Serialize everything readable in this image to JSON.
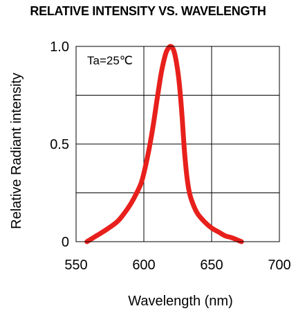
{
  "chart_data": {
    "type": "line",
    "title": "RELATIVE INTENSITY VS. WAVELENGTH",
    "xlabel": "Wavelength (nm)",
    "ylabel": "Relative Radiant intensity",
    "annotation": "Ta=25℃",
    "xlim": [
      550,
      700
    ],
    "ylim": [
      0,
      1.0
    ],
    "x_ticks": [
      550,
      600,
      650,
      700
    ],
    "x_tick_labels": [
      "550",
      "600",
      "650",
      "700"
    ],
    "y_ticks": [
      0,
      0.5,
      1.0
    ],
    "y_tick_labels": [
      "0",
      "0.5",
      "1.0"
    ],
    "grid": true,
    "series": [
      {
        "color": "#e8201c",
        "x": [
          558,
          565,
          572,
          580,
          585,
          590,
          594,
          598,
          601,
          604,
          607,
          610,
          613,
          616,
          618,
          620,
          622,
          624,
          626,
          628,
          630,
          632,
          634,
          637,
          640,
          645,
          650,
          655,
          660,
          665,
          672
        ],
        "y": [
          0.0,
          0.03,
          0.06,
          0.1,
          0.14,
          0.19,
          0.24,
          0.3,
          0.38,
          0.48,
          0.6,
          0.74,
          0.87,
          0.96,
          0.99,
          1.0,
          0.98,
          0.92,
          0.82,
          0.66,
          0.46,
          0.32,
          0.24,
          0.18,
          0.14,
          0.1,
          0.07,
          0.05,
          0.03,
          0.02,
          0.0
        ]
      }
    ]
  }
}
